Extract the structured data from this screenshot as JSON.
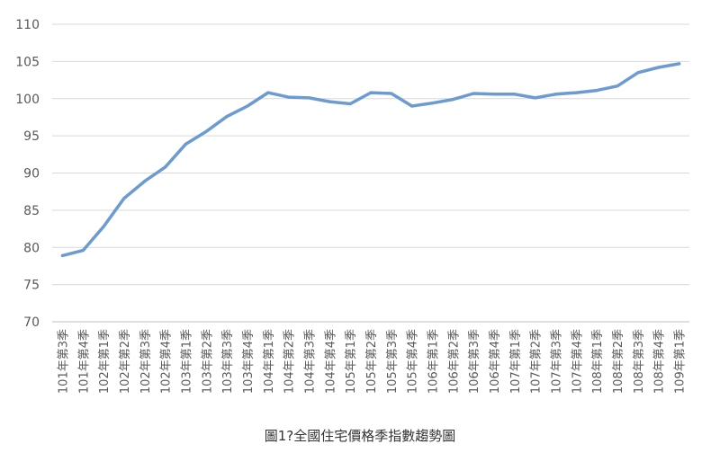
{
  "chart_data": {
    "type": "line",
    "title": "",
    "xlabel": "",
    "ylabel": "",
    "ylim": [
      70,
      110
    ],
    "yticks": [
      70,
      75,
      80,
      85,
      90,
      95,
      100,
      105,
      110
    ],
    "grid": true,
    "legend": "none",
    "categories": [
      "101年第3季",
      "101年第4季",
      "102年第1季",
      "102年第2季",
      "102年第3季",
      "102年第4季",
      "103年第1季",
      "103年第2季",
      "103年第3季",
      "103年第4季",
      "104年第1季",
      "104年第2季",
      "104年第3季",
      "104年第4季",
      "105年第1季",
      "105年第2季",
      "105年第3季",
      "105年第4季",
      "106年第1季",
      "106年第2季",
      "106年第3季",
      "106年第4季",
      "107年第1季",
      "107年第2季",
      "107年第3季",
      "107年第4季",
      "108年第1季",
      "108年第2季",
      "108年第3季",
      "108年第4季",
      "109年第1季"
    ],
    "series": [
      {
        "color": "#6b9bd1",
        "values": [
          78.9,
          79.6,
          82.8,
          86.6,
          88.9,
          90.8,
          93.9,
          95.6,
          97.6,
          99.0,
          100.8,
          100.2,
          100.1,
          99.6,
          99.3,
          100.8,
          100.7,
          99.0,
          99.4,
          99.9,
          100.7,
          100.6,
          100.6,
          100.1,
          100.6,
          100.8,
          101.1,
          101.7,
          103.5,
          104.2,
          104.7
        ]
      }
    ]
  },
  "caption": "圖1?全國住宅價格季指數趨勢圖",
  "colors": {
    "grid": "#d9d9d9",
    "axis": "#bfbfbf",
    "line": "#6b9bd1"
  }
}
